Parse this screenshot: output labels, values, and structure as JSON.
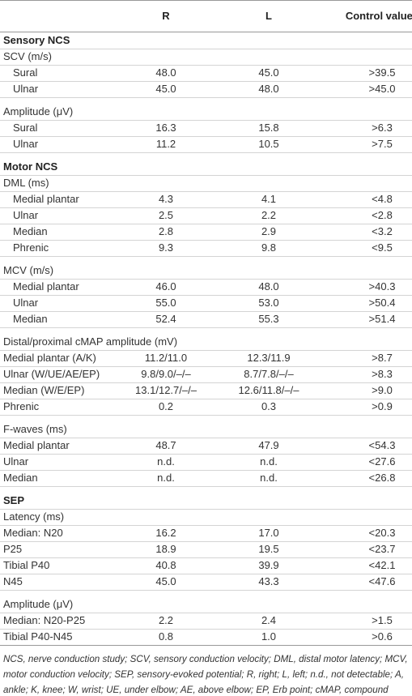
{
  "table": {
    "header": {
      "columns": [
        "R",
        "L",
        "Control values"
      ]
    },
    "rows": [
      {
        "section": "Sensory NCS"
      },
      {
        "group": "SCV (m/s)",
        "indented": true
      },
      {
        "label": "Sural",
        "values": [
          "48.0",
          "45.0",
          ">39.5"
        ]
      },
      {
        "label": "Ulnar",
        "values": [
          "45.0",
          "48.0",
          ">45.0"
        ]
      },
      {
        "group": "Amplitude (μV)",
        "indented": true
      },
      {
        "label": "Sural",
        "values": [
          "16.3",
          "15.8",
          ">6.3"
        ]
      },
      {
        "label": "Ulnar",
        "values": [
          "11.2",
          "10.5",
          ">7.5"
        ]
      },
      {
        "section": "Motor NCS"
      },
      {
        "group": "DML (ms)",
        "indented": true
      },
      {
        "label": "Medial plantar",
        "values": [
          "4.3",
          "4.1",
          "<4.8"
        ]
      },
      {
        "label": "Ulnar",
        "values": [
          "2.5",
          "2.2",
          "<2.8"
        ]
      },
      {
        "label": "Median",
        "values": [
          "2.8",
          "2.9",
          "<3.2"
        ]
      },
      {
        "label": "Phrenic",
        "values": [
          "9.3",
          "9.8",
          "<9.5"
        ]
      },
      {
        "group": "MCV (m/s)",
        "indented": true
      },
      {
        "label": "Medial plantar",
        "values": [
          "46.0",
          "48.0",
          ">40.3"
        ]
      },
      {
        "label": "Ulnar",
        "values": [
          "55.0",
          "53.0",
          ">50.4"
        ]
      },
      {
        "label": "Median",
        "values": [
          "52.4",
          "55.3",
          ">51.4"
        ]
      },
      {
        "group": "Distal/proximal cMAP amplitude (mV)",
        "indented": false
      },
      {
        "label": "Medial plantar (A/K)",
        "values": [
          "11.2/11.0",
          "12.3/11.9",
          ">8.7"
        ]
      },
      {
        "label": "Ulnar (W/UE/AE/EP)",
        "values": [
          "9.8/9.0/–/–",
          "8.7/7.8/–/–",
          ">8.3"
        ]
      },
      {
        "label": "Median (W/E/EP)",
        "values": [
          "13.1/12.7/–/–",
          "12.6/11.8/–/–",
          ">9.0"
        ]
      },
      {
        "label": "Phrenic",
        "values": [
          "0.2",
          "0.3",
          ">0.9"
        ]
      },
      {
        "group": "F-waves (ms)",
        "indented": false
      },
      {
        "label": "Medial plantar",
        "values": [
          "48.7",
          "47.9",
          "<54.3"
        ]
      },
      {
        "label": "Ulnar",
        "values": [
          "n.d.",
          "n.d.",
          "<27.6"
        ]
      },
      {
        "label": "Median",
        "values": [
          "n.d.",
          "n.d.",
          "<26.8"
        ]
      },
      {
        "section": "SEP"
      },
      {
        "group": "Latency (ms)",
        "indented": false
      },
      {
        "label": "Median: N20",
        "values": [
          "16.2",
          "17.0",
          "<20.3"
        ]
      },
      {
        "label": "P25",
        "values": [
          "18.9",
          "19.5",
          "<23.7"
        ]
      },
      {
        "label": "Tibial P40",
        "values": [
          "40.8",
          "39.9",
          "<42.1"
        ]
      },
      {
        "label": "N45",
        "values": [
          "45.0",
          "43.3",
          "<47.6"
        ]
      },
      {
        "group": "Amplitude (μV)",
        "indented": false
      },
      {
        "label": "Median: N20-P25",
        "values": [
          "2.2",
          "2.4",
          ">1.5"
        ]
      },
      {
        "label": "Tibial P40-N45",
        "values": [
          "0.8",
          "1.0",
          ">0.6"
        ]
      }
    ]
  },
  "footnote": "NCS, nerve conduction study; SCV, sensory conduction velocity; DML, distal motor latency; MCV, motor conduction velocity; SEP, sensory-evoked potential; R, right; L, left; n.d., not detectable; A, ankle; K, knee; W, wrist; UE, under elbow; AE, above elbow; EP, Erb point; cMAP, compound motor action potential."
}
